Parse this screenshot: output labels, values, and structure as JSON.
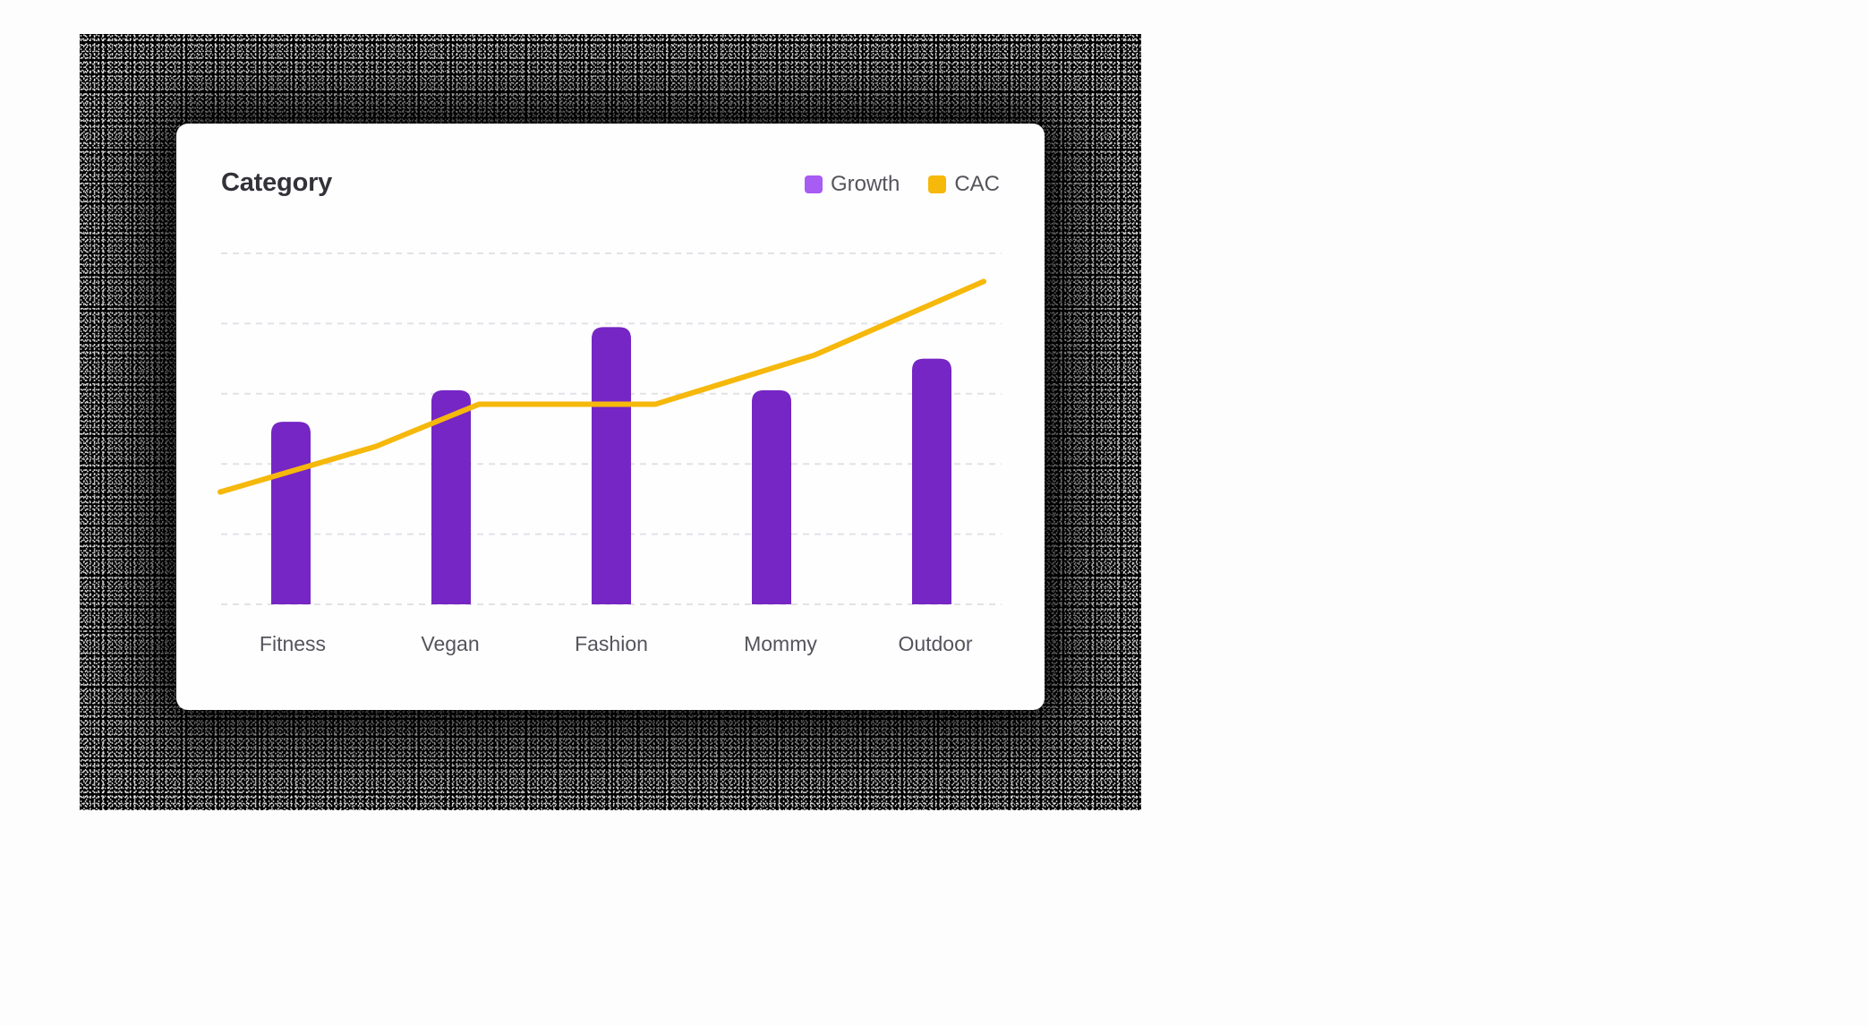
{
  "card": {
    "title": "Category",
    "legend": [
      {
        "label": "Growth",
        "color": "#a75cf3",
        "icon": "square-swatch"
      },
      {
        "label": "CAC",
        "color": "#f5b80b",
        "icon": "square-swatch"
      }
    ]
  },
  "colors": {
    "bar": "#7526c4",
    "line": "#f5b80b",
    "grid": "#e2e1e6",
    "frame": "#000000",
    "card_bg": "#fffeff"
  },
  "chart_data": {
    "type": "bar",
    "title": "Category",
    "categories": [
      "Fitness",
      "Vegan",
      "Fashion",
      "Mommy",
      "Outdoor"
    ],
    "series": [
      {
        "name": "Growth",
        "type": "bar",
        "values": [
          52,
          61,
          79,
          61,
          70
        ],
        "color": "#7526c4"
      },
      {
        "name": "CAC",
        "type": "line",
        "points": [
          [
            0,
            32
          ],
          [
            0.75,
            45
          ],
          [
            1.25,
            57
          ],
          [
            2.1,
            57
          ],
          [
            2.85,
            71
          ],
          [
            3.7,
            92
          ]
        ],
        "values_at_categories": [
          38,
          54,
          57,
          67,
          82
        ],
        "color": "#f5b80b"
      }
    ],
    "xlabel": "",
    "ylabel": "",
    "ylim": [
      0,
      100
    ],
    "y_gridlines": [
      0,
      20,
      40,
      60,
      80,
      100
    ],
    "y_tick_labels_visible": false,
    "grid": true,
    "grid_style": "dashed",
    "legend_position": "top-right"
  }
}
